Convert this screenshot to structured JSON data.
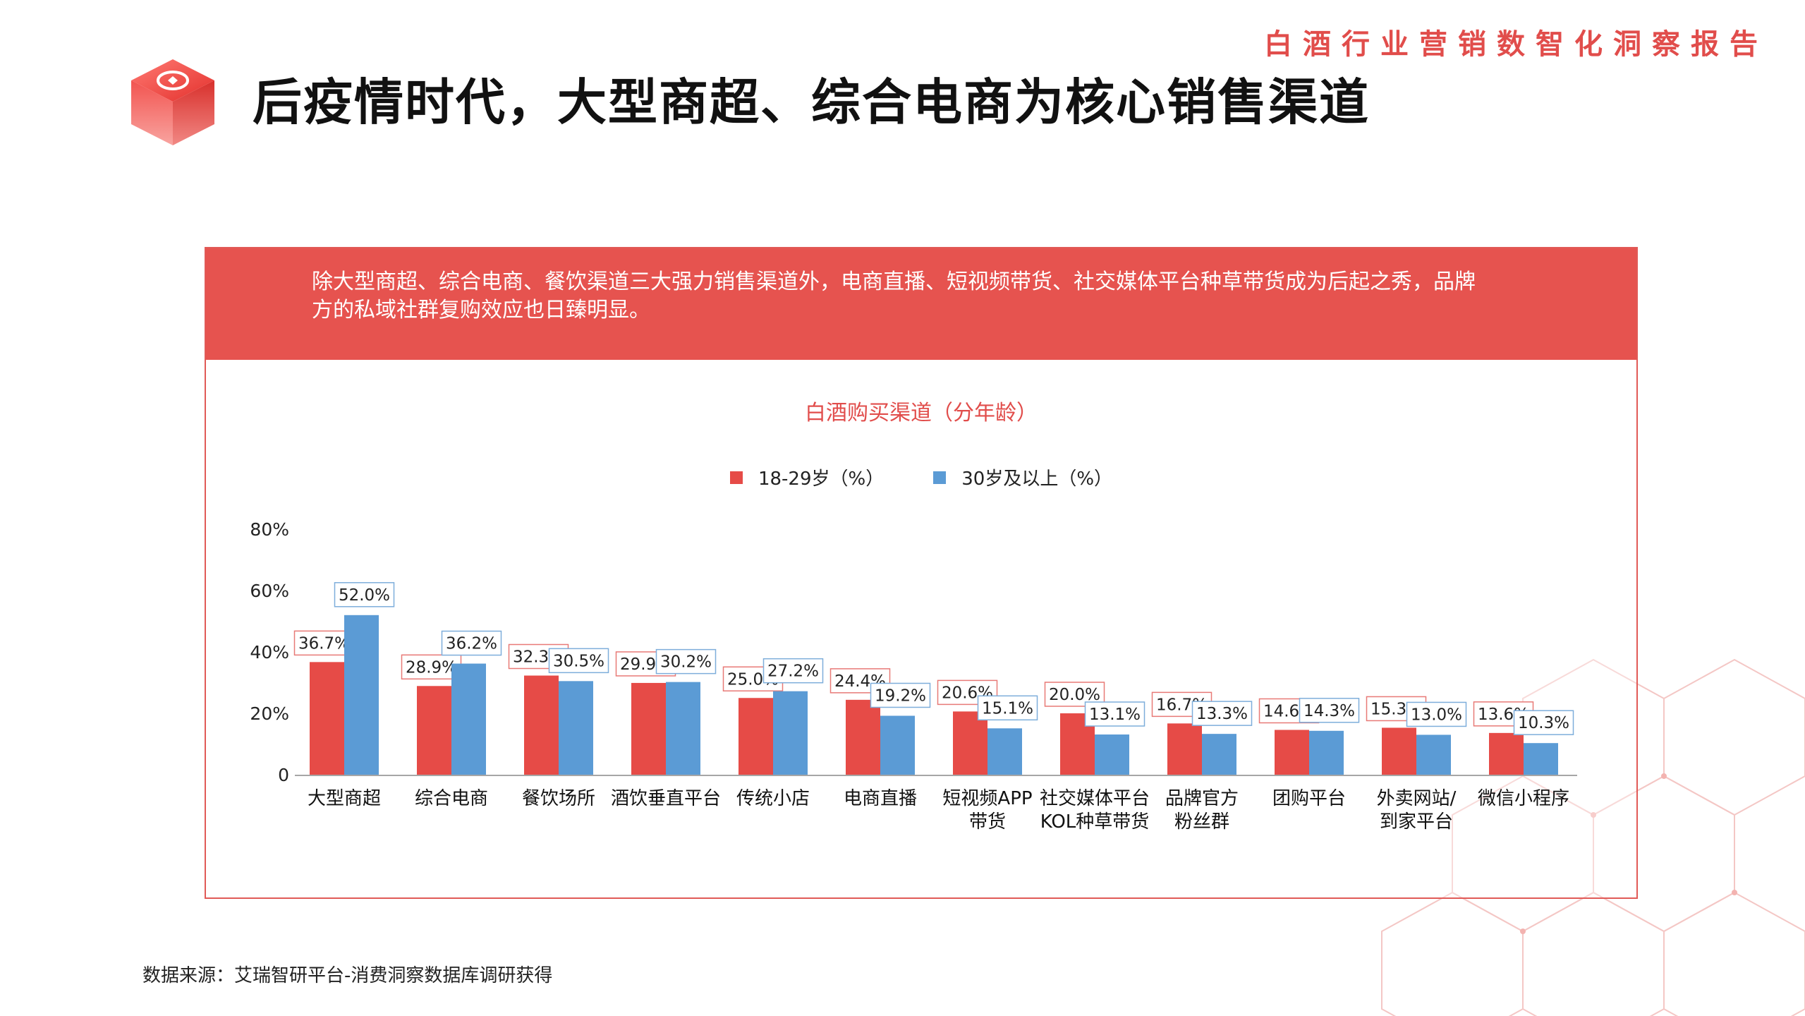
{
  "header": {
    "report_name": "白酒行业营销数智化洞察报告",
    "page_title": "后疫情时代，大型商超、综合电商为核心销售渠道"
  },
  "banner": {
    "text": "除大型商超、综合电商、餐饮渠道三大强力销售渠道外，电商直播、短视频带货、社交媒体平台种草带货成为后起之秀，品牌方的私域社群复购效应也日臻明显。"
  },
  "colors": {
    "accent": "#e6534f",
    "series_1": "#e64b47",
    "series_2": "#5b9bd5",
    "axis": "#a6a6a6"
  },
  "chart_data": {
    "type": "bar",
    "title": "白酒购买渠道（分年龄）",
    "legend_position": "top-center",
    "categories": [
      "大型商超",
      "综合电商",
      "餐饮场所",
      "酒饮垂直平台",
      "传统小店",
      "电商直播",
      "短视频APP\n带货",
      "社交媒体平台\nKOL种草带货",
      "品牌官方\n粉丝群",
      "团购平台",
      "外卖网站/\n到家平台",
      "微信小程序"
    ],
    "series": [
      {
        "name": "18-29岁（%）",
        "values": [
          36.7,
          28.9,
          32.3,
          29.9,
          25.0,
          24.4,
          20.6,
          20.0,
          16.7,
          14.6,
          15.3,
          13.6
        ]
      },
      {
        "name": "30岁及以上（%）",
        "values": [
          52.0,
          36.2,
          30.5,
          30.2,
          27.2,
          19.2,
          15.1,
          13.1,
          13.3,
          14.3,
          13.0,
          10.3
        ]
      }
    ],
    "y_ticks": [
      "0",
      "20%",
      "40%",
      "60%",
      "80%"
    ],
    "ylim": [
      0,
      80
    ],
    "grid": false
  },
  "footer": {
    "source": "数据来源：艾瑞智研平台-消费洞察数据库调研获得"
  }
}
